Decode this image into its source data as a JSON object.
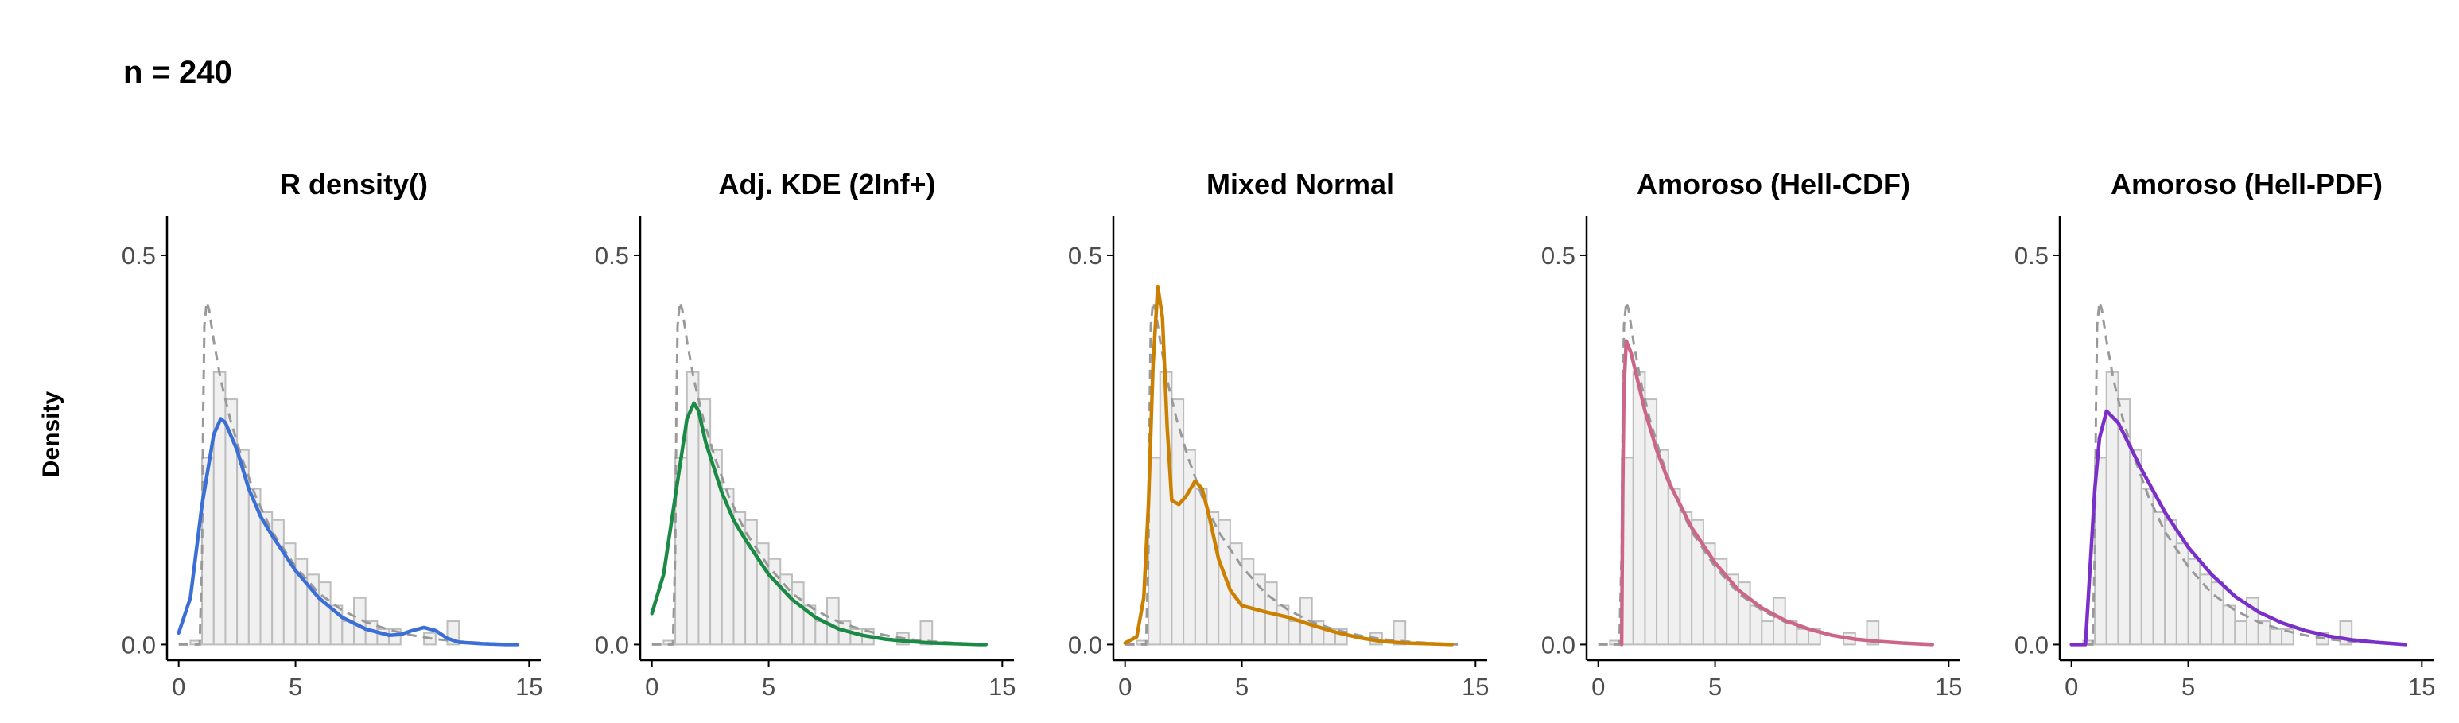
{
  "header": {
    "title": "n = 240"
  },
  "ylabel": "Density",
  "colors": {
    "hist_fill": "#f0f0f0",
    "hist_stroke": "#bdbdbd",
    "true_density": "#999999",
    "axis": "#000000",
    "tick_text": "#4d4d4d"
  },
  "chart_data": [
    {
      "type": "line",
      "title": "R density()",
      "xlabel": "",
      "ylabel": "Density",
      "xlim": [
        -0.5,
        15.5
      ],
      "ylim": [
        -0.02,
        0.55
      ],
      "xticks": [
        0,
        5,
        15
      ],
      "yticks": [
        0.0,
        0.5
      ],
      "series": [
        {
          "color": "#3b6fd6",
          "x": [
            0,
            0.5,
            1,
            1.5,
            1.8,
            2,
            2.5,
            3,
            3.5,
            4,
            5,
            6,
            7,
            8,
            9,
            9.5,
            10,
            10.5,
            11,
            11.5,
            12,
            13,
            14,
            14.5
          ],
          "y": [
            0.015,
            0.06,
            0.18,
            0.27,
            0.29,
            0.285,
            0.25,
            0.2,
            0.165,
            0.14,
            0.095,
            0.06,
            0.035,
            0.02,
            0.012,
            0.013,
            0.018,
            0.022,
            0.018,
            0.008,
            0.003,
            0.001,
            0.0,
            0.0
          ]
        }
      ]
    },
    {
      "type": "line",
      "title": "Adj. KDE (2Inf+)",
      "xlabel": "",
      "ylabel": "Density",
      "xlim": [
        -0.5,
        15.5
      ],
      "ylim": [
        -0.02,
        0.55
      ],
      "xticks": [
        0,
        5,
        15
      ],
      "yticks": [
        0.0,
        0.5
      ],
      "series": [
        {
          "color": "#1a8a45",
          "x": [
            0,
            0.5,
            1,
            1.5,
            1.8,
            2,
            2.3,
            3,
            3.5,
            4,
            5,
            6,
            7,
            8,
            9,
            10,
            11,
            12,
            13,
            14,
            14.3
          ],
          "y": [
            0.04,
            0.09,
            0.19,
            0.29,
            0.31,
            0.3,
            0.26,
            0.195,
            0.16,
            0.135,
            0.09,
            0.058,
            0.035,
            0.02,
            0.012,
            0.007,
            0.004,
            0.002,
            0.001,
            0.0,
            0.0
          ]
        }
      ]
    },
    {
      "type": "line",
      "title": "Mixed Normal",
      "xlabel": "",
      "ylabel": "Density",
      "xlim": [
        -0.5,
        15.5
      ],
      "ylim": [
        -0.02,
        0.55
      ],
      "xticks": [
        0,
        5,
        15
      ],
      "yticks": [
        0.0,
        0.5
      ],
      "series": [
        {
          "color": "#cc8000",
          "x": [
            0,
            0.5,
            0.8,
            1.0,
            1.2,
            1.4,
            1.6,
            1.8,
            2.0,
            2.3,
            2.6,
            3.0,
            3.3,
            3.6,
            4.0,
            4.5,
            5.0,
            6.0,
            7.0,
            8.0,
            9.0,
            10.0,
            11.0,
            12.0,
            13.0,
            14.0
          ],
          "y": [
            0.002,
            0.01,
            0.06,
            0.18,
            0.36,
            0.46,
            0.42,
            0.28,
            0.185,
            0.18,
            0.19,
            0.21,
            0.2,
            0.165,
            0.11,
            0.07,
            0.05,
            0.042,
            0.035,
            0.025,
            0.016,
            0.009,
            0.004,
            0.002,
            0.001,
            0.0
          ]
        }
      ]
    },
    {
      "type": "line",
      "title": "Amoroso (Hell-CDF)",
      "xlabel": "",
      "ylabel": "Density",
      "xlim": [
        -0.5,
        15.5
      ],
      "ylim": [
        -0.02,
        0.55
      ],
      "xticks": [
        0,
        5,
        15
      ],
      "yticks": [
        0.0,
        0.5
      ],
      "series": [
        {
          "color": "#cc6688",
          "x": [
            1.0,
            1.05,
            1.1,
            1.2,
            1.4,
            1.6,
            2,
            2.5,
            3,
            4,
            5,
            6,
            7,
            8,
            9,
            10,
            11,
            12,
            13,
            14.3
          ],
          "y": [
            0.0,
            0.2,
            0.33,
            0.39,
            0.375,
            0.35,
            0.3,
            0.25,
            0.21,
            0.15,
            0.105,
            0.07,
            0.047,
            0.031,
            0.02,
            0.012,
            0.007,
            0.004,
            0.002,
            0.0
          ]
        }
      ]
    },
    {
      "type": "line",
      "title": "Amoroso (Hell-PDF)",
      "xlabel": "",
      "ylabel": "Density",
      "xlim": [
        -0.5,
        15.5
      ],
      "ylim": [
        -0.02,
        0.55
      ],
      "xticks": [
        0,
        5,
        15
      ],
      "yticks": [
        0.0,
        0.5
      ],
      "series": [
        {
          "color": "#7a2fc9",
          "x": [
            0,
            0.6,
            0.8,
            1.0,
            1.2,
            1.5,
            2.0,
            2.5,
            3,
            4,
            5,
            6,
            7,
            8,
            9,
            10,
            11,
            12,
            13,
            14.3
          ],
          "y": [
            0.0,
            0.0,
            0.1,
            0.2,
            0.265,
            0.3,
            0.285,
            0.255,
            0.225,
            0.17,
            0.125,
            0.09,
            0.062,
            0.042,
            0.028,
            0.018,
            0.011,
            0.006,
            0.003,
            0.0
          ]
        }
      ]
    }
  ],
  "histogram": {
    "bin_width": 0.5,
    "start": 0.5,
    "heights": [
      0.005,
      0.24,
      0.35,
      0.315,
      0.25,
      0.2,
      0.17,
      0.16,
      0.13,
      0.11,
      0.09,
      0.08,
      0.05,
      0.03,
      0.06,
      0.03,
      0.02,
      0.02,
      0.0,
      0.0,
      0.015,
      0.0,
      0.03
    ]
  },
  "true_density": {
    "x": [
      0,
      0.5,
      0.9,
      1.0,
      1.05,
      1.1,
      1.2,
      1.3,
      1.5,
      1.8,
      2.2,
      2.7,
      3.3,
      4,
      5,
      6,
      7,
      8,
      9,
      10,
      11,
      12,
      13,
      14.3
    ],
    "y": [
      0.0,
      0.0,
      0.0,
      0.12,
      0.3,
      0.41,
      0.44,
      0.43,
      0.39,
      0.34,
      0.29,
      0.24,
      0.19,
      0.145,
      0.1,
      0.066,
      0.044,
      0.029,
      0.019,
      0.012,
      0.007,
      0.004,
      0.002,
      0.0
    ]
  }
}
